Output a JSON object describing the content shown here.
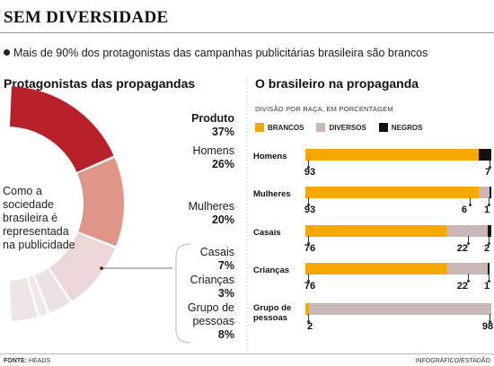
{
  "header": {
    "title": "SEM DIVERSIDADE",
    "subtitle": "Mais de 90% dos protagonistas das campanhas publicitárias brasileira são brancos"
  },
  "left": {
    "title": "Protagonistas das propagandas",
    "center_text": "Como a sociedade brasileira é representada na publicidade"
  },
  "right": {
    "title": "O brasileiro na propaganda",
    "division": "DIVISÃO POR RAÇA, EM PORCENTAGEM"
  },
  "colors": {
    "brancos": "#f5a800",
    "diversos": "#c9b7b5",
    "negros": "#111111",
    "donut": [
      "#b8202a",
      "#df9686",
      "#ebd7d7",
      "#ece2e2",
      "#efe8e8",
      "#ede4e4"
    ]
  },
  "chart_data": [
    {
      "type": "pie",
      "title": "Protagonistas das propagandas",
      "categories": [
        "Produto",
        "Homens",
        "Mulheres",
        "Casais",
        "Crianças",
        "Grupo de pessoas"
      ],
      "values": [
        37,
        26,
        20,
        7,
        3,
        8
      ],
      "value_labels": [
        "37%",
        "26%",
        "20%",
        "7%",
        "3%",
        "8%"
      ]
    },
    {
      "type": "bar",
      "orientation": "horizontal",
      "stacked": true,
      "title": "O brasileiro na propaganda",
      "subtitle": "DIVISÃO POR RAÇA, EM PORCENTAGEM",
      "categories": [
        "Homens",
        "Mulheres",
        "Casais",
        "Crianças",
        "Grupo de pessoas"
      ],
      "series": [
        {
          "name": "BRANCOS",
          "values": [
            93,
            93,
            76,
            76,
            2
          ]
        },
        {
          "name": "DIVERSOS",
          "values": [
            0,
            6,
            22,
            22,
            98
          ]
        },
        {
          "name": "NEGROS",
          "values": [
            7,
            1,
            2,
            1,
            0
          ]
        }
      ],
      "xlim": [
        0,
        100
      ],
      "legend": "top"
    }
  ],
  "footer": {
    "source_label": "FONTE:",
    "source": "HEADS",
    "credit": "INFOGRÁFICO/ESTADÃO"
  }
}
